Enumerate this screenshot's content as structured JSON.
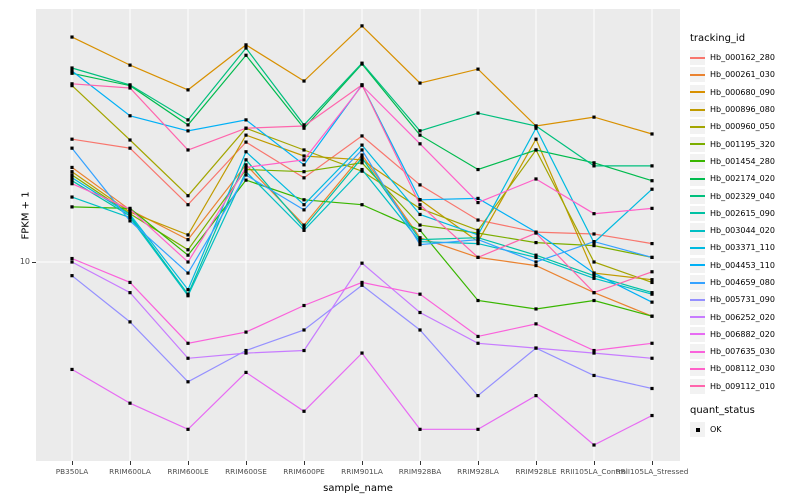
{
  "figure": {
    "y_axis": {
      "label": "FPKM + 1",
      "tick": "10"
    },
    "x_axis": {
      "label": "sample_name"
    },
    "legend": {
      "title": "tracking_id",
      "quant_title": "quant_status",
      "quant_ok": "OK"
    },
    "colors": {
      "panel_bg": "#ebebeb",
      "grid": "#ffffff",
      "tick_text": "#4d4d4d",
      "marker": "#000000"
    }
  },
  "chart_data": {
    "type": "line",
    "title": "",
    "xlabel": "sample_name",
    "ylabel": "FPKM + 1",
    "y_scale": "log10",
    "y_tick_values": [
      10
    ],
    "ylim": [
      2,
      80
    ],
    "grid": true,
    "legend_position": "right",
    "legend_title": "tracking_id",
    "point_legend": {
      "title": "quant_status",
      "items": [
        "OK"
      ]
    },
    "marker": "black-square",
    "categories": [
      "PB350LA",
      "RRIM600LA",
      "RRIM600LE",
      "RRIM600SE",
      "RRIM600PE",
      "RRIM901LA",
      "RRIM928BA",
      "RRIM928LA",
      "RRIM928LE",
      "RRII105LA_Control",
      "RRII105LA_Stressed"
    ],
    "series": [
      {
        "name": "Hb_000162_280",
        "color": "#F8766D",
        "values": [
          28.5,
          26.4,
          16.3,
          27.8,
          20.5,
          29.3,
          19.3,
          14.3,
          12.9,
          12.7,
          11.7
        ]
      },
      {
        "name": "Hb_000261_030",
        "color": "#EA8331",
        "values": [
          22.4,
          15.6,
          12.1,
          22.9,
          13.7,
          24.9,
          12.3,
          10.4,
          9.7,
          7.7,
          6.3
        ]
      },
      {
        "name": "Hb_000680_090",
        "color": "#D89000",
        "values": [
          68.1,
          53.6,
          43.4,
          63.7,
          46.8,
          74.9,
          46.0,
          51.8,
          31.9,
          34.4,
          29.8
        ]
      },
      {
        "name": "Hb_000896_080",
        "color": "#C09B00",
        "values": [
          21.6,
          15.3,
          12.6,
          29.5,
          24.7,
          23.9,
          17.0,
          11.9,
          28.5,
          9.1,
          8.6
        ]
      },
      {
        "name": "Hb_000960_050",
        "color": "#A3A500",
        "values": [
          45.0,
          28.3,
          17.6,
          31.3,
          26.0,
          21.7,
          15.8,
          13.1,
          26.0,
          10.0,
          8.4
        ]
      },
      {
        "name": "Hb_001195_320",
        "color": "#7CAE00",
        "values": [
          21.0,
          15.1,
          11.1,
          22.0,
          21.6,
          23.3,
          13.7,
          12.8,
          11.8,
          11.5,
          10.4
        ]
      },
      {
        "name": "Hb_001454_280",
        "color": "#39B600",
        "values": [
          16.0,
          15.8,
          10.6,
          20.1,
          17.0,
          16.3,
          13.1,
          7.2,
          6.7,
          7.2,
          6.3
        ]
      },
      {
        "name": "Hb_002174_020",
        "color": "#00BB4E",
        "values": [
          50.0,
          45.0,
          32.2,
          58.3,
          31.3,
          54.1,
          29.5,
          22.0,
          26.0,
          23.3,
          20.0
        ]
      },
      {
        "name": "Hb_002329_040",
        "color": "#00BF7D",
        "values": [
          52.3,
          45.3,
          33.6,
          62.0,
          32.2,
          54.5,
          30.6,
          35.6,
          31.9,
          22.7,
          22.7
        ]
      },
      {
        "name": "Hb_002615_090",
        "color": "#00C1A3",
        "values": [
          20.0,
          14.8,
          7.6,
          23.9,
          13.4,
          24.3,
          12.1,
          12.3,
          10.6,
          8.9,
          7.7
        ]
      },
      {
        "name": "Hb_003044_020",
        "color": "#00BFC4",
        "values": [
          17.4,
          14.6,
          7.5,
          21.6,
          13.1,
          22.0,
          11.9,
          11.7,
          10.4,
          8.7,
          7.6
        ]
      },
      {
        "name": "Hb_003371_110",
        "color": "#00BAE0",
        "values": [
          20.5,
          15.0,
          7.9,
          25.6,
          16.3,
          27.1,
          15.0,
          12.6,
          31.3,
          11.8,
          18.6
        ]
      },
      {
        "name": "Hb_004453_110",
        "color": "#00B0F6",
        "values": [
          51.0,
          34.8,
          30.6,
          33.6,
          22.9,
          45.3,
          17.0,
          17.2,
          12.9,
          9.1,
          7.1
        ]
      },
      {
        "name": "Hb_004659_080",
        "color": "#35A2FF",
        "values": [
          26.4,
          14.2,
          9.1,
          21.0,
          15.6,
          26.0,
          11.6,
          12.1,
          10.0,
          11.9,
          10.4
        ]
      },
      {
        "name": "Hb_005731_090",
        "color": "#9590FF",
        "values": [
          8.9,
          6.0,
          3.6,
          4.7,
          5.6,
          8.2,
          5.6,
          3.2,
          4.8,
          3.8,
          3.4
        ]
      },
      {
        "name": "Hb_006252_020",
        "color": "#C77CFF",
        "values": [
          10.0,
          7.7,
          4.4,
          4.6,
          4.7,
          9.9,
          6.5,
          5.0,
          4.8,
          4.6,
          4.4
        ]
      },
      {
        "name": "Hb_006882_020",
        "color": "#E76BF3",
        "values": [
          4.0,
          3.0,
          2.4,
          3.9,
          2.8,
          4.6,
          2.4,
          2.4,
          3.2,
          2.1,
          2.7
        ]
      },
      {
        "name": "Hb_007635_030",
        "color": "#FA62DB",
        "values": [
          10.3,
          8.4,
          5.0,
          5.5,
          6.9,
          8.4,
          7.6,
          5.3,
          5.9,
          4.7,
          5.0
        ]
      },
      {
        "name": "Hb_008112_030",
        "color": "#FF61C9",
        "values": [
          19.5,
          15.7,
          10.0,
          22.4,
          23.9,
          45.0,
          27.4,
          16.6,
          20.3,
          15.1,
          15.8
        ]
      },
      {
        "name": "Hb_009112_010",
        "color": "#FF65AC",
        "values": [
          45.7,
          44.1,
          26.0,
          31.3,
          31.9,
          45.3,
          16.3,
          10.4,
          12.8,
          7.7,
          9.2
        ]
      }
    ]
  }
}
